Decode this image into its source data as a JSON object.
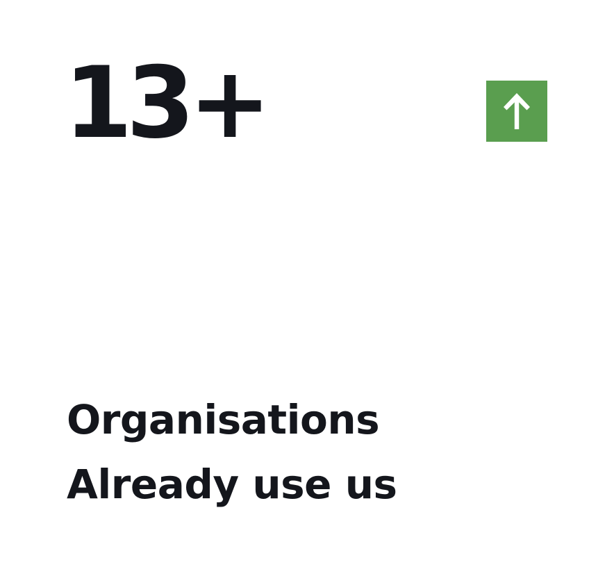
{
  "stat": {
    "value": "13+",
    "caption_line1": "Organisations",
    "caption_line2": "Already use us"
  },
  "badge": {
    "icon": "arrow-up-icon",
    "color": "#5a9e4f",
    "icon_color": "#ffffff"
  },
  "colors": {
    "background": "#ffffff",
    "text": "#14161c"
  }
}
